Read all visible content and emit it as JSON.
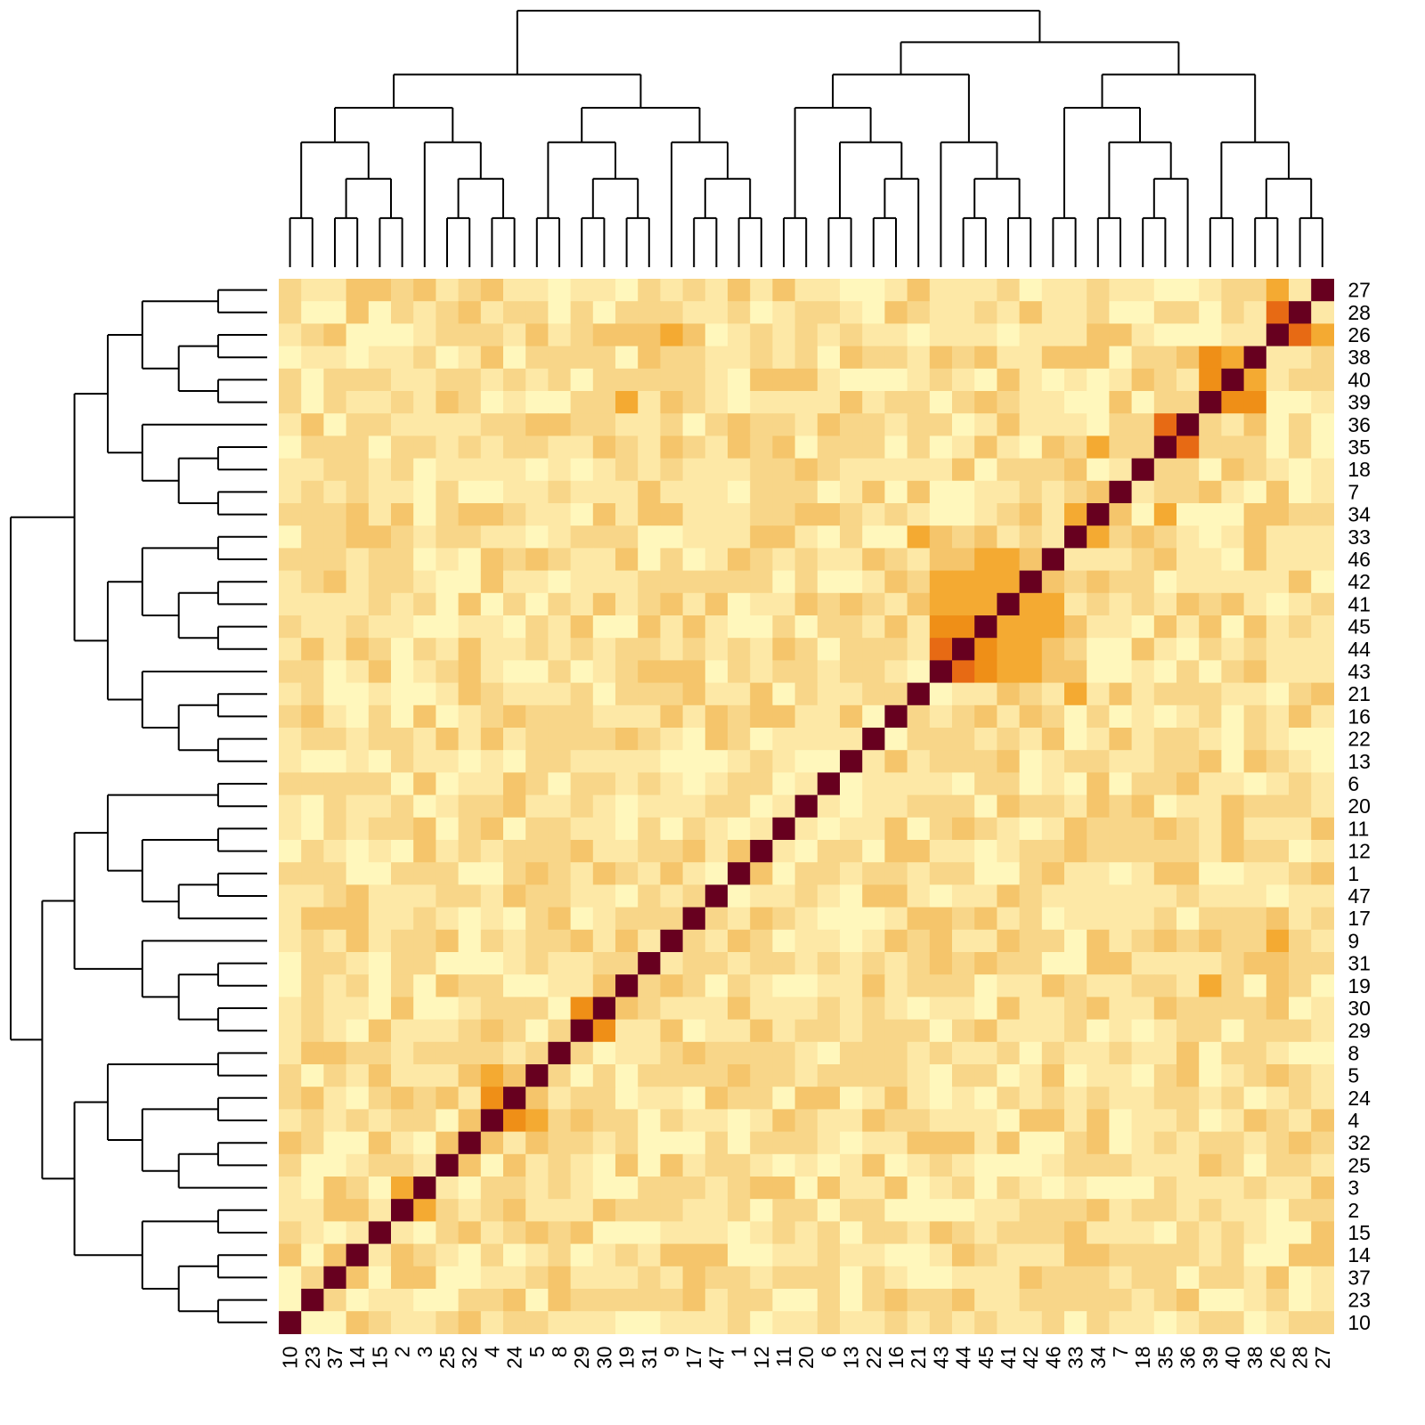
{
  "chart_data": {
    "type": "heatmap",
    "row_labels": [
      "27",
      "28",
      "26",
      "38",
      "40",
      "39",
      "36",
      "35",
      "18",
      "7",
      "34",
      "33",
      "46",
      "42",
      "41",
      "45",
      "44",
      "43",
      "21",
      "16",
      "22",
      "13",
      "6",
      "20",
      "11",
      "12",
      "1",
      "47",
      "17",
      "9",
      "31",
      "19",
      "30",
      "29",
      "8",
      "5",
      "24",
      "4",
      "32",
      "25",
      "3",
      "2",
      "15",
      "14",
      "37",
      "23",
      "10"
    ],
    "col_labels": [
      "10",
      "23",
      "37",
      "14",
      "15",
      "2",
      "3",
      "25",
      "32",
      "4",
      "24",
      "5",
      "8",
      "29",
      "30",
      "19",
      "31",
      "9",
      "17",
      "47",
      "1",
      "12",
      "11",
      "20",
      "6",
      "13",
      "22",
      "16",
      "21",
      "43",
      "44",
      "45",
      "41",
      "42",
      "46",
      "33",
      "34",
      "7",
      "18",
      "35",
      "36",
      "39",
      "40",
      "38",
      "26",
      "28",
      "27"
    ],
    "color_scale": [
      "#FFF7BC",
      "#FDE8A6",
      "#F8D689",
      "#F5C56B",
      "#F4AA32",
      "#EF8F17",
      "#E76A14",
      "#B31208",
      "#67001F"
    ],
    "high_similarity_pairs": [
      {
        "a": "26",
        "b": "28",
        "level": 6
      },
      {
        "a": "26",
        "b": "27",
        "level": 4
      },
      {
        "a": "39",
        "b": "40",
        "level": 5
      },
      {
        "a": "38",
        "b": "40",
        "level": 4
      },
      {
        "a": "38",
        "b": "39",
        "level": 5
      },
      {
        "a": "35",
        "b": "36",
        "level": 6
      },
      {
        "a": "18",
        "b": "35",
        "level": 2
      },
      {
        "a": "7",
        "b": "35",
        "level": 2
      },
      {
        "a": "34",
        "b": "35",
        "level": 4
      },
      {
        "a": "33",
        "b": "34",
        "level": 4
      },
      {
        "a": "7",
        "b": "34",
        "level": 3
      },
      {
        "a": "43",
        "b": "44",
        "level": 6
      },
      {
        "a": "44",
        "b": "45",
        "level": 5
      },
      {
        "a": "43",
        "b": "45",
        "level": 5
      },
      {
        "a": "41",
        "b": "42",
        "level": 4
      },
      {
        "a": "42",
        "b": "46",
        "level": 3
      },
      {
        "a": "41",
        "b": "46",
        "level": 4
      },
      {
        "a": "41",
        "b": "43",
        "level": 4
      },
      {
        "a": "41",
        "b": "44",
        "level": 4
      },
      {
        "a": "41",
        "b": "45",
        "level": 4
      },
      {
        "a": "42",
        "b": "43",
        "level": 4
      },
      {
        "a": "42",
        "b": "44",
        "level": 4
      },
      {
        "a": "42",
        "b": "45",
        "level": 4
      },
      {
        "a": "46",
        "b": "45",
        "level": 4
      },
      {
        "a": "46",
        "b": "44",
        "level": 3
      },
      {
        "a": "46",
        "b": "43",
        "level": 3
      },
      {
        "a": "29",
        "b": "30",
        "level": 5
      },
      {
        "a": "4",
        "b": "24",
        "level": 5
      },
      {
        "a": "4",
        "b": "5",
        "level": 4
      },
      {
        "a": "5",
        "b": "24",
        "level": 3
      },
      {
        "a": "2",
        "b": "3",
        "level": 4
      },
      {
        "a": "19",
        "b": "39",
        "level": 4
      },
      {
        "a": "9",
        "b": "26",
        "level": 4
      },
      {
        "a": "21",
        "b": "33",
        "level": 4
      },
      {
        "a": "19",
        "b": "26",
        "level": 3
      },
      {
        "a": "26",
        "b": "9",
        "level": 4
      }
    ],
    "diagonal_level": 8,
    "legend": "none",
    "title": "",
    "xlabel": "",
    "ylabel": ""
  }
}
